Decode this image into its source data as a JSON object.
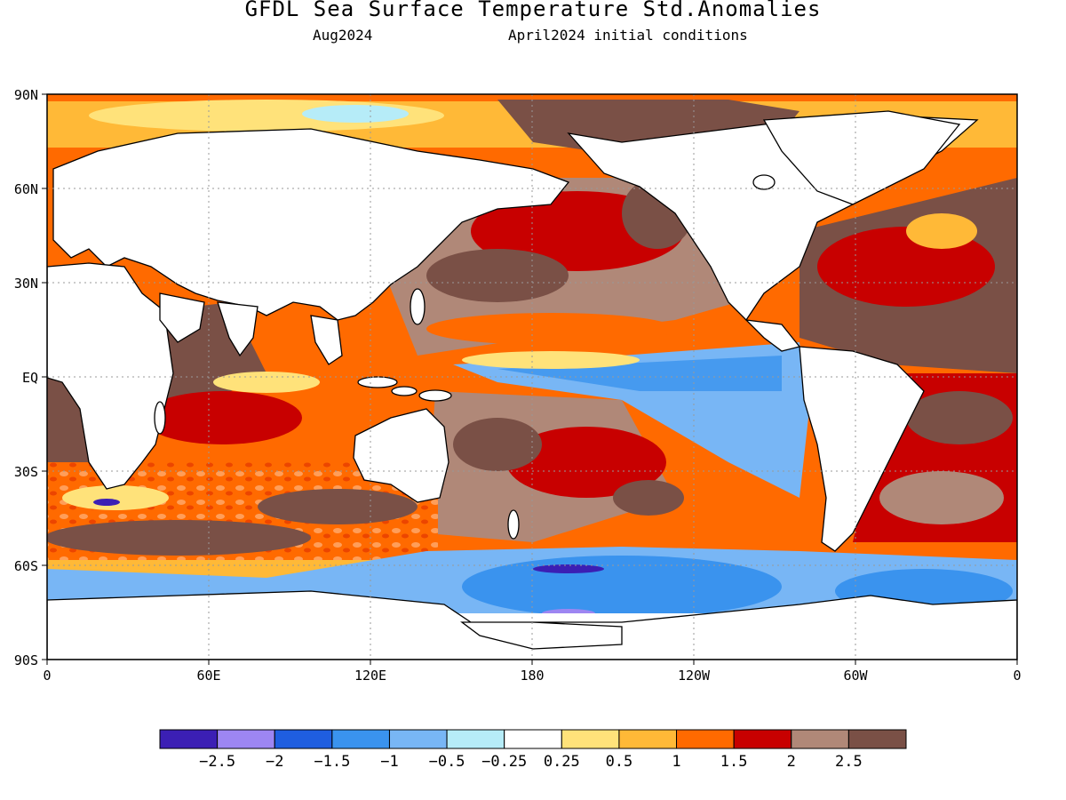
{
  "title": "GFDL Sea Surface Temperature Std.Anomalies",
  "subtitle_left": "Aug2024",
  "subtitle_right": "April2024 initial conditions",
  "lat_labels": [
    "90N",
    "60N",
    "30N",
    "EQ",
    "30S",
    "60S",
    "90S"
  ],
  "lon_labels": [
    "0",
    "60E",
    "120E",
    "180",
    "120W",
    "60W",
    "0"
  ],
  "colorbar": {
    "colors": [
      "#3b1fb4",
      "#9d86f2",
      "#1f5ee0",
      "#3a93ee",
      "#78b6f5",
      "#b6ecf8",
      "#ffffff",
      "#ffe27a",
      "#ffb937",
      "#ff6a00",
      "#c80000",
      "#b08878",
      "#7a5046"
    ],
    "labels": [
      "-2.5",
      "-2",
      "-1.5",
      "-1",
      "-0.5",
      "-0.25",
      "0.25",
      "0.5",
      "1",
      "1.5",
      "2",
      "2.5"
    ]
  },
  "colors": {
    "land": "#ffffff",
    "coast": "#000000",
    "grid": "#999999"
  }
}
